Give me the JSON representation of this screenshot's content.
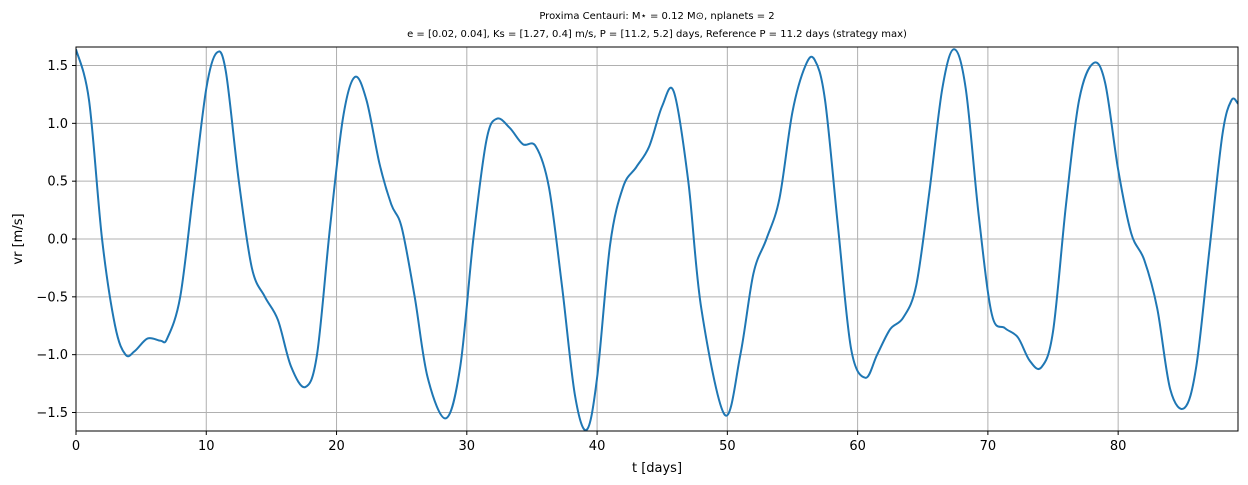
{
  "chart_data": {
    "type": "line",
    "title": "Proxima Centauri: M⋆ = 0.12 M⊙, nplanets = 2",
    "subtitle": "e = [0.02, 0.04], Ks = [1.27, 0.4] m/s, P = [11.2, 5.2] days, Reference P = 11.2 days (strategy max)",
    "xlabel": "t [days]",
    "ylabel": "vr [m/s]",
    "xlim": [
      0,
      89.2
    ],
    "ylim": [
      -1.66,
      1.66
    ],
    "x_ticks": [
      0,
      10,
      20,
      30,
      40,
      50,
      60,
      70,
      80
    ],
    "x_tick_labels": [
      "0",
      "10",
      "20",
      "30",
      "40",
      "50",
      "60",
      "70",
      "80"
    ],
    "y_ticks": [
      -1.5,
      -1.0,
      -0.5,
      0.0,
      0.5,
      1.0,
      1.5
    ],
    "y_tick_labels": [
      "−1.5",
      "−1.0",
      "−0.5",
      "0.0",
      "0.5",
      "1.0",
      "1.5"
    ],
    "grid": true,
    "color": "#1f77b4",
    "series": [
      {
        "x": [
          0,
          1,
          2,
          3,
          3.8,
          4.5,
          5.5,
          6.5,
          7,
          8,
          9,
          10,
          10.8,
          11.5,
          12.5,
          13.5,
          14.5,
          15.5,
          16.5,
          17.6,
          18.5,
          19.5,
          20.5,
          21.4,
          22.3,
          23.3,
          24.2,
          25,
          26,
          27,
          28.4,
          29.5,
          30.5,
          31.5,
          32.3,
          33.3,
          34.3,
          35.3,
          36.3,
          37.3,
          38.3,
          39.2,
          40,
          41,
          42,
          43,
          44,
          45,
          45.9,
          47,
          48,
          49.8,
          51,
          52,
          53,
          54,
          55,
          56,
          56.7,
          57.5,
          58.5,
          59.5,
          60.6,
          61.5,
          62.5,
          63.5,
          64.5,
          65.5,
          66.5,
          67.4,
          68.3,
          69.3,
          70.3,
          71.3,
          72.3,
          73.2,
          74.1,
          75,
          76,
          77,
          78.1,
          79,
          80,
          81,
          82,
          83,
          84,
          85.1,
          86,
          87,
          88,
          88.7,
          89.2
        ],
        "y": [
          1.64,
          1.2,
          0.0,
          -0.75,
          -1.0,
          -0.97,
          -0.86,
          -0.88,
          -0.86,
          -0.5,
          0.4,
          1.3,
          1.61,
          1.45,
          0.5,
          -0.25,
          -0.5,
          -0.7,
          -1.1,
          -1.28,
          -1.0,
          0.1,
          1.05,
          1.4,
          1.2,
          0.65,
          0.3,
          0.1,
          -0.5,
          -1.2,
          -1.55,
          -1.1,
          0.0,
          0.85,
          1.04,
          0.96,
          0.82,
          0.8,
          0.45,
          -0.4,
          -1.35,
          -1.65,
          -1.2,
          -0.05,
          0.45,
          0.62,
          0.8,
          1.15,
          1.27,
          0.5,
          -0.6,
          -1.52,
          -1.0,
          -0.3,
          0.0,
          0.35,
          1.1,
          1.5,
          1.55,
          1.2,
          0.1,
          -0.95,
          -1.2,
          -1.0,
          -0.78,
          -0.68,
          -0.4,
          0.4,
          1.3,
          1.64,
          1.3,
          0.2,
          -0.65,
          -0.77,
          -0.85,
          -1.05,
          -1.11,
          -0.8,
          0.3,
          1.2,
          1.52,
          1.35,
          0.6,
          0.05,
          -0.18,
          -0.6,
          -1.3,
          -1.46,
          -1.1,
          -0.1,
          0.9,
          1.2,
          1.17
        ]
      }
    ]
  }
}
